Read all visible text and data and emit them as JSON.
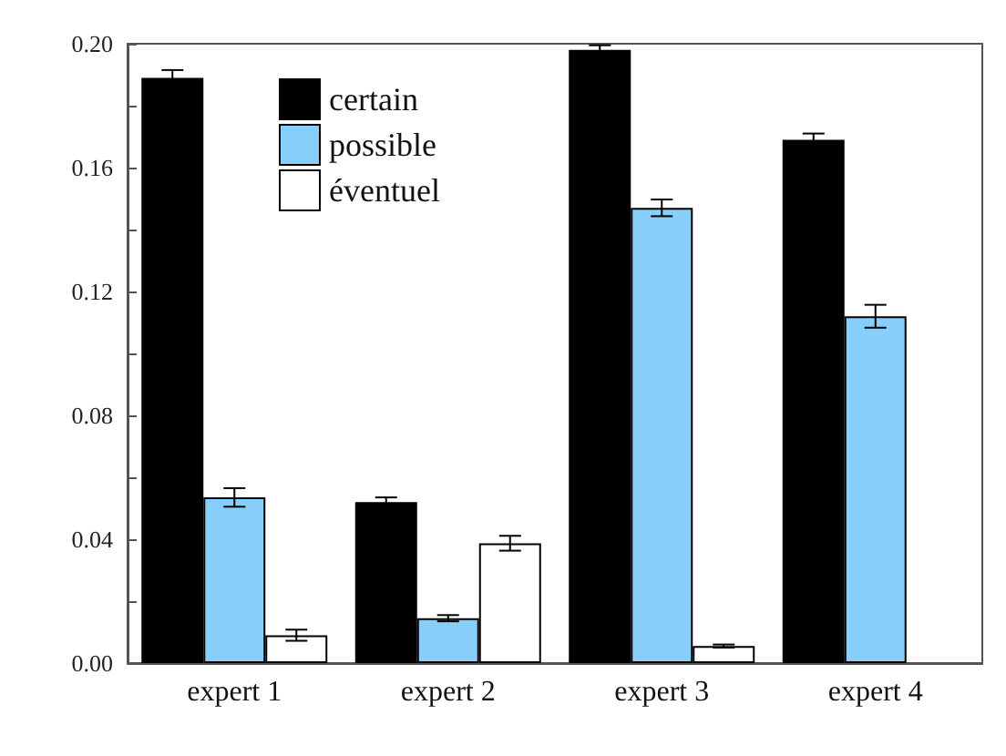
{
  "chart_data": {
    "type": "bar",
    "categories": [
      "expert 1",
      "expert 2",
      "expert 3",
      "expert 4"
    ],
    "series": [
      {
        "name": "certain",
        "color": "#000000",
        "values": [
          0.189,
          0.052,
          0.198,
          0.169
        ],
        "errors": [
          0.0025,
          0.0015,
          0.0015,
          0.002
        ]
      },
      {
        "name": "possible",
        "color": "#87cefa",
        "values": [
          0.0535,
          0.0145,
          0.147,
          0.112
        ],
        "errors": [
          0.003,
          0.001,
          0.0027,
          0.0037
        ]
      },
      {
        "name": "éventuel",
        "color": "#ffffff",
        "values": [
          0.009,
          0.0387,
          0.0055,
          null
        ],
        "errors": [
          0.0018,
          0.0024,
          0.0005,
          null
        ]
      }
    ],
    "ylim": [
      0,
      0.2
    ],
    "yticks": [
      {
        "value": 0,
        "label": "0.00"
      },
      {
        "value": 0.02,
        "label": null
      },
      0.04,
      {
        "value": 0.06,
        "label": null
      },
      0.08,
      {
        "value": 0.1,
        "label": null
      },
      0.12,
      {
        "value": 0.14,
        "label": null
      },
      0.16,
      {
        "value": 0.18,
        "label": null
      },
      {
        "value": 0.2,
        "label": "0.20"
      }
    ],
    "grid": false,
    "legend": "top left"
  }
}
